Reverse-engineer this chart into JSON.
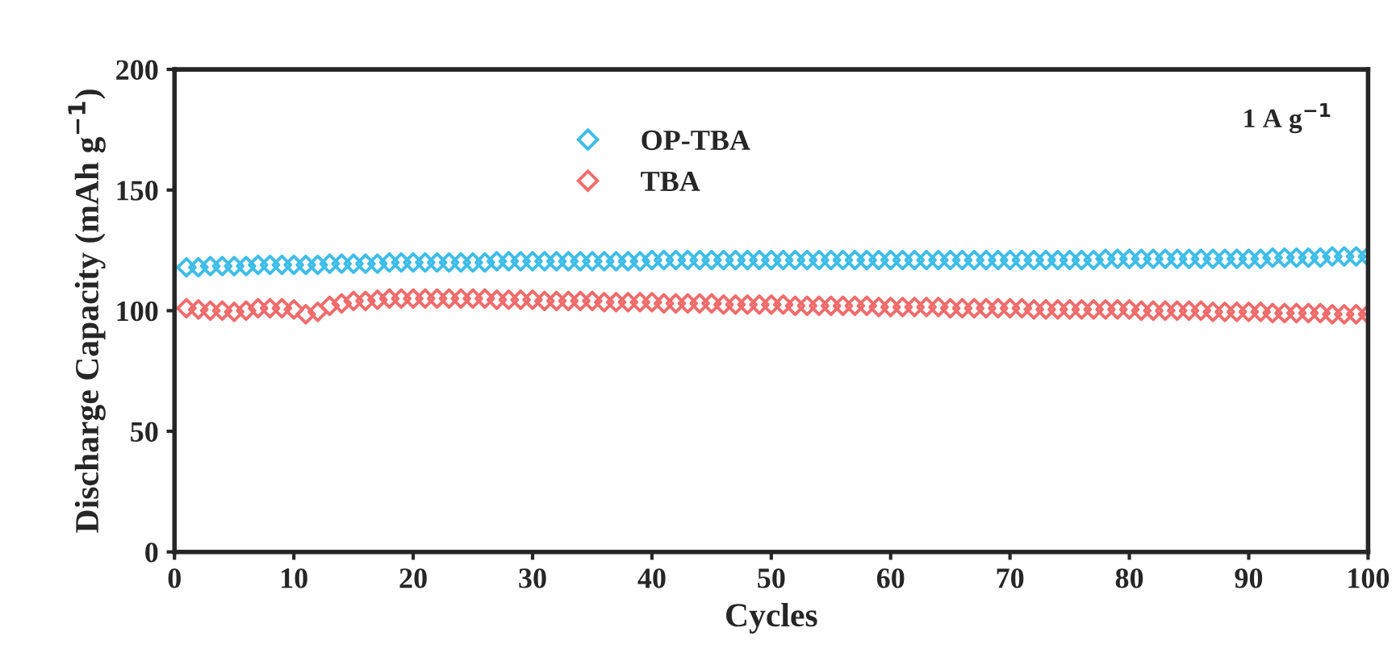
{
  "chart_data": {
    "type": "scatter",
    "xlabel": "Cycles",
    "ylabel": "Discharge Capacity (mAh g$^{−1}$)",
    "x": [
      1,
      2,
      3,
      4,
      5,
      6,
      7,
      8,
      9,
      10,
      11,
      12,
      13,
      14,
      15,
      16,
      17,
      18,
      19,
      20,
      21,
      22,
      23,
      24,
      25,
      26,
      27,
      28,
      29,
      30,
      31,
      32,
      33,
      34,
      35,
      36,
      37,
      38,
      39,
      40,
      41,
      42,
      43,
      44,
      45,
      46,
      47,
      48,
      49,
      50,
      51,
      52,
      53,
      54,
      55,
      56,
      57,
      58,
      59,
      60,
      61,
      62,
      63,
      64,
      65,
      66,
      67,
      68,
      69,
      70,
      71,
      72,
      73,
      74,
      75,
      76,
      77,
      78,
      79,
      80,
      81,
      82,
      83,
      84,
      85,
      86,
      87,
      88,
      89,
      90,
      91,
      92,
      93,
      94,
      95,
      96,
      97,
      98,
      99,
      100
    ],
    "series": [
      {
        "name": "OP-TBA",
        "color": "#3dbde8",
        "values": [
          118,
          118,
          118.5,
          118.5,
          118.5,
          118.5,
          119,
          119,
          119,
          119,
          119,
          119,
          119.5,
          119.5,
          119.5,
          119.5,
          119.5,
          120,
          120,
          120,
          120,
          120,
          120,
          120,
          120,
          120,
          120.5,
          120.5,
          120.5,
          120.5,
          120.5,
          120.5,
          120.5,
          120.5,
          120.5,
          120.5,
          120.5,
          120.5,
          120.5,
          121,
          121,
          121,
          121,
          121,
          121,
          121,
          121,
          121,
          121,
          121,
          121,
          121,
          121,
          121,
          121,
          121,
          121,
          121,
          121,
          121,
          121,
          121,
          121,
          121,
          121,
          121,
          121,
          121,
          121,
          121,
          121,
          121,
          121,
          121,
          121,
          121,
          121,
          121.5,
          121.5,
          121.5,
          121.5,
          121.5,
          121.5,
          121.5,
          121.5,
          121.5,
          121.5,
          121.5,
          121.5,
          121.5,
          121.5,
          122,
          122,
          122,
          122,
          122,
          122.5,
          122.5,
          122.5,
          122.5
        ]
      },
      {
        "name": "TBA",
        "color": "#f06b6b",
        "values": [
          101,
          100.5,
          100,
          100,
          99.5,
          100,
          101,
          101,
          101,
          100.5,
          98.5,
          99.5,
          102,
          103,
          104,
          104,
          104.5,
          105,
          105,
          105,
          105,
          105,
          105,
          105,
          105,
          105,
          104.5,
          104.5,
          104.5,
          104.5,
          104,
          104,
          104,
          104,
          104,
          103.5,
          103.5,
          103.5,
          103.5,
          103.5,
          103,
          103,
          103,
          103,
          103,
          102.5,
          102.5,
          102.5,
          102.5,
          102.5,
          102.5,
          102,
          102,
          102,
          102,
          102,
          102,
          102,
          101.5,
          101.5,
          101.5,
          101.5,
          101.5,
          101.5,
          101,
          101,
          101,
          101,
          101,
          101,
          101,
          100.5,
          100.5,
          100.5,
          100.5,
          100.5,
          100.5,
          100.5,
          100.5,
          100.5,
          100,
          100,
          100,
          100,
          100,
          100,
          99.5,
          99.5,
          99.5,
          99.5,
          99.5,
          99,
          99,
          99,
          99,
          99,
          98.5,
          98.5,
          98.5,
          98.5
        ]
      }
    ],
    "marker": "diamond",
    "legend": "top",
    "grid": false,
    "xlim": [
      0,
      100
    ],
    "xticks": [
      0,
      10,
      20,
      30,
      40,
      50,
      60,
      70,
      80,
      90,
      100
    ],
    "ylim": [
      0,
      200
    ],
    "yticks": [
      0,
      50,
      100,
      150,
      200
    ],
    "annotations": [
      "1 A g$^{−1}$"
    ]
  }
}
